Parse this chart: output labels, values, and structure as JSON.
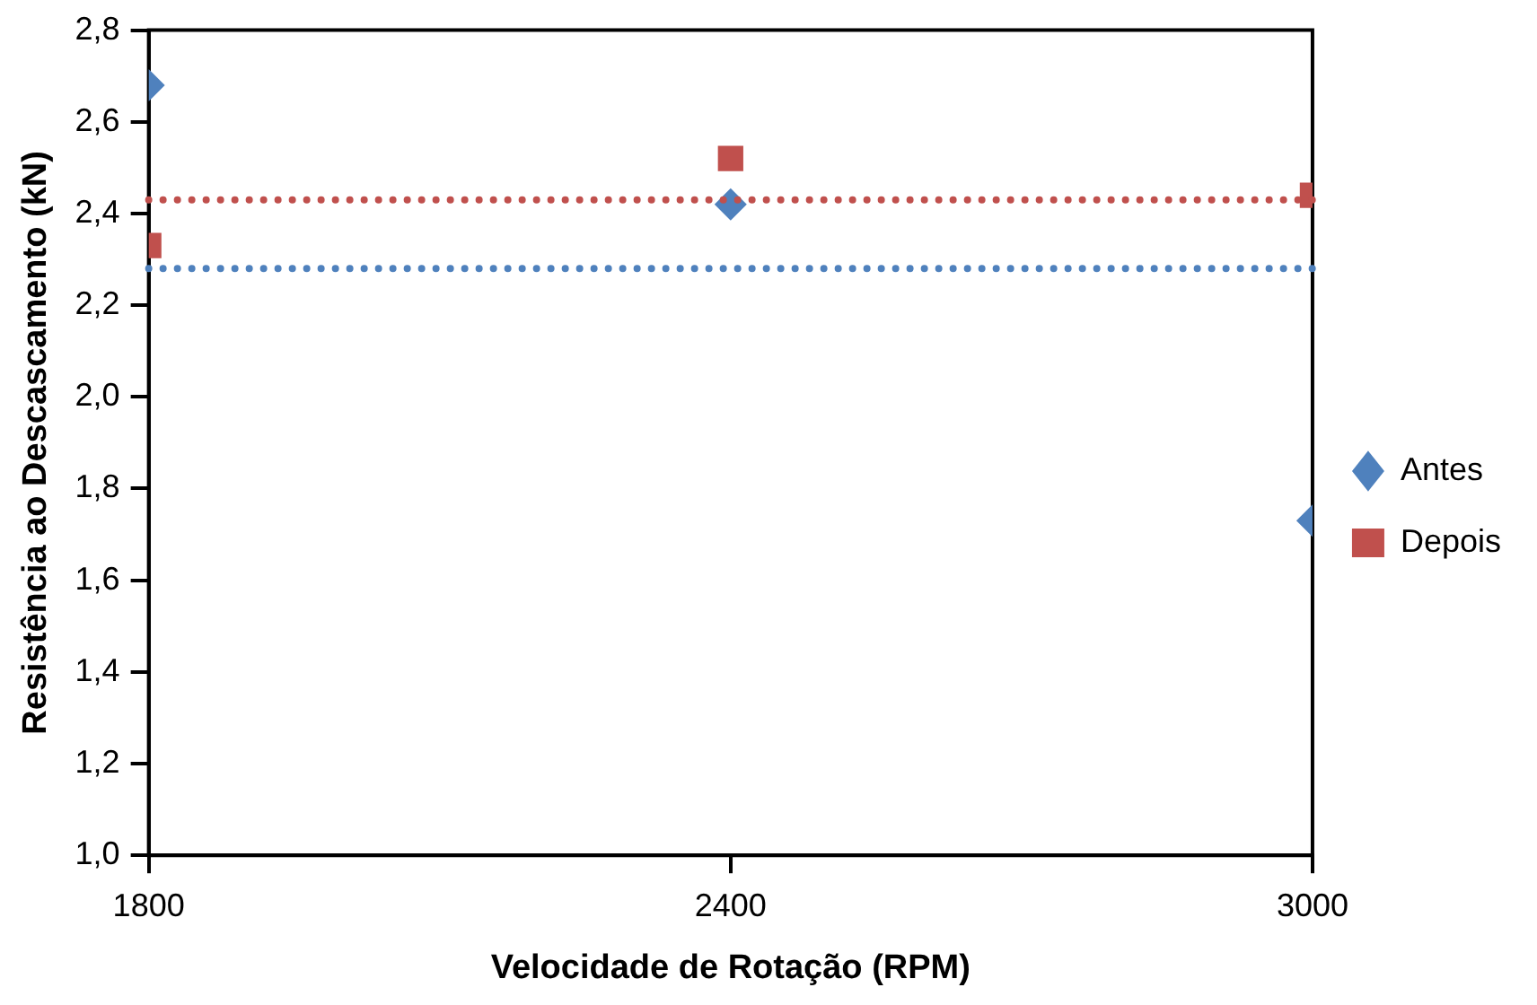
{
  "chart_data": {
    "type": "scatter",
    "xlabel": "Velocidade de Rotação (RPM)",
    "ylabel": "Resistência ao Descascamento (kN)",
    "x": [
      1800,
      2400,
      3000
    ],
    "series": [
      {
        "name": "Antes",
        "color": "#4f81bd",
        "marker": "diamond",
        "values": [
          2.68,
          2.42,
          1.73
        ]
      },
      {
        "name": "Depois",
        "color": "#c0504d",
        "marker": "square",
        "values": [
          2.33,
          2.52,
          2.44
        ]
      }
    ],
    "xlim": [
      1800,
      3000
    ],
    "xticks": [
      1800,
      2400,
      3000
    ],
    "ylim": [
      1.0,
      2.8
    ],
    "yticks": [
      {
        "value": 1.0,
        "label": "1,0"
      },
      {
        "value": 1.2,
        "label": "1,2"
      },
      {
        "value": 1.4,
        "label": "1,4"
      },
      {
        "value": 1.6,
        "label": "1,6"
      },
      {
        "value": 1.8,
        "label": "1,8"
      },
      {
        "value": 2.0,
        "label": "2,0"
      },
      {
        "value": 2.2,
        "label": "2,2"
      },
      {
        "value": 2.4,
        "label": "2,4"
      },
      {
        "value": 2.6,
        "label": "2,6"
      },
      {
        "value": 2.8,
        "label": "2,8"
      }
    ],
    "ref_lines": [
      {
        "axis": "y",
        "value": 2.28,
        "color": "#4f81bd",
        "line_style": "dotted"
      },
      {
        "axis": "y",
        "value": 2.43,
        "color": "#c0504d",
        "line_style": "dotted"
      }
    ],
    "grid": false,
    "legend": "right"
  }
}
